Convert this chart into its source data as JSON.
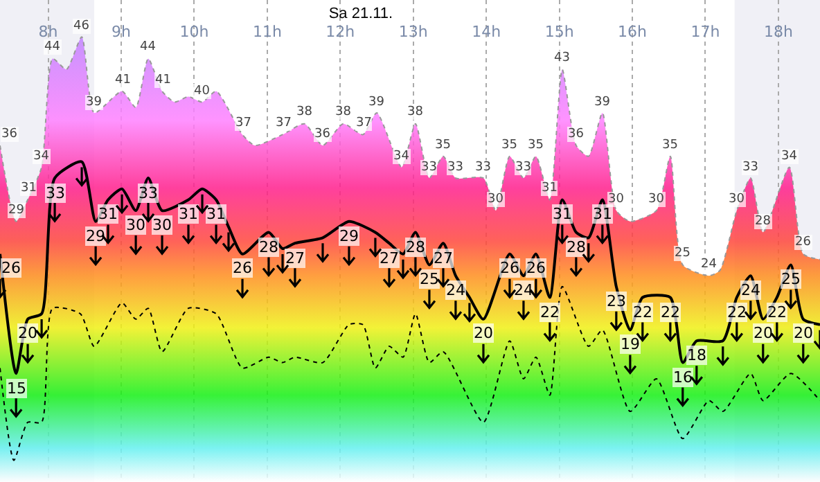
{
  "chart_data": {
    "type": "area",
    "title": "Sa 21.11.",
    "xlim": [
      7.34,
      18.57
    ],
    "xticks": [
      {
        "value": 8,
        "label": "8h"
      },
      {
        "value": 9,
        "label": "9h"
      },
      {
        "value": 10,
        "label": "10h"
      },
      {
        "value": 11,
        "label": "11h"
      },
      {
        "value": 12,
        "label": "12h"
      },
      {
        "value": 13,
        "label": "13h"
      },
      {
        "value": 14,
        "label": "14h"
      },
      {
        "value": 15,
        "label": "15h"
      },
      {
        "value": 16,
        "label": "16h"
      },
      {
        "value": 17,
        "label": "17h"
      },
      {
        "value": 18,
        "label": "18h"
      }
    ],
    "ylim": [
      5,
      49.4
    ],
    "tick_labels": "x",
    "grid": "x",
    "bands": [
      {
        "axis": "x",
        "from": 7.34,
        "to": 8.63,
        "color": "#f0f0f6"
      },
      {
        "axis": "x",
        "from": 17.4,
        "to": 18.57,
        "color": "#f0f0f6"
      }
    ],
    "series": [
      {
        "color": "#ff80ff",
        "line_style": "dotted",
        "x": [
          7.34,
          7.56,
          7.72,
          7.91,
          8.06,
          8.25,
          8.46,
          8.63,
          9.01,
          9.2,
          9.37,
          9.56,
          9.73,
          9.92,
          10.11,
          10.3,
          10.66,
          10.83,
          11.21,
          11.51,
          11.76,
          12.04,
          12.31,
          12.5,
          12.84,
          13.03,
          13.22,
          13.41,
          13.58,
          13.96,
          14.13,
          14.32,
          14.51,
          14.68,
          14.87,
          15.04,
          15.23,
          15.4,
          15.59,
          15.78,
          15.97,
          16.33,
          16.52,
          16.69,
          17.05,
          17.2,
          17.43,
          17.62,
          17.79,
          18.15,
          18.34,
          18.57
        ],
        "values": [
          36,
          29,
          31,
          34,
          44,
          43,
          46,
          39,
          41,
          39.5,
          44,
          41,
          40,
          40.5,
          40,
          41,
          37,
          36,
          37,
          38,
          36,
          38,
          37,
          39,
          34,
          38,
          33,
          35,
          33,
          33,
          30,
          35,
          33,
          35,
          31,
          43,
          36,
          35,
          39,
          30,
          29,
          30,
          35,
          25,
          24,
          24.5,
          30,
          33,
          28,
          34,
          26,
          25.5
        ],
        "value_labels": [
          "36",
          "29",
          "31",
          "34",
          "44",
          null,
          "46",
          "39",
          "41",
          null,
          "44",
          "41",
          null,
          null,
          "40",
          null,
          "37",
          null,
          "37",
          "38",
          "36",
          "38",
          "37",
          "39",
          "34",
          "38",
          "33",
          "35",
          "33",
          "33",
          "30",
          "35",
          "33",
          "35",
          "31",
          "43",
          "36",
          null,
          "39",
          "30",
          null,
          "30",
          "35",
          "25",
          "24",
          null,
          "30",
          "33",
          "28",
          "34",
          "26",
          null
        ]
      },
      {
        "type": "line",
        "color": "#000000",
        "line_style": "solid",
        "x": [
          7.34,
          7.56,
          7.72,
          7.91,
          8.09,
          8.46,
          8.65,
          8.82,
          9.01,
          9.2,
          9.37,
          9.56,
          9.92,
          10.11,
          10.3,
          10.47,
          10.66,
          11.02,
          11.21,
          11.38,
          11.76,
          12.12,
          12.48,
          12.67,
          12.86,
          13.03,
          13.22,
          13.41,
          13.58,
          13.77,
          13.96,
          14.32,
          14.51,
          14.68,
          14.87,
          15.04,
          15.23,
          15.4,
          15.59,
          15.78,
          15.97,
          16.14,
          16.52,
          16.69,
          16.88,
          17.24,
          17.43,
          17.62,
          17.79,
          17.98,
          18.17,
          18.34,
          18.57
        ],
        "values": [
          26,
          15,
          20,
          20.5,
          33,
          34.5,
          29,
          31,
          32,
          30,
          33,
          30,
          31,
          32,
          31,
          28.5,
          26,
          28,
          26.5,
          27,
          27.5,
          29,
          28,
          27,
          26,
          28,
          25,
          27,
          24,
          22,
          20,
          26,
          24,
          26,
          22,
          31,
          28,
          27.5,
          31,
          23,
          19,
          22,
          22,
          16,
          18,
          18,
          22,
          24,
          20,
          22,
          25,
          20,
          19.5
        ],
        "value_labels": [
          "26",
          "15",
          "20",
          null,
          "33",
          null,
          "29",
          "31",
          null,
          "30",
          "33",
          "30",
          "31",
          null,
          "31",
          null,
          "26",
          "28",
          null,
          "27",
          null,
          "29",
          null,
          "27",
          null,
          "28",
          "25",
          "27",
          "24",
          null,
          "20",
          "26",
          "24",
          "26",
          "22",
          "31",
          "28",
          null,
          "31",
          "23",
          "19",
          "22",
          "22",
          "16",
          "18",
          null,
          "22",
          "24",
          "20",
          "22",
          "25",
          "20",
          null
        ]
      },
      {
        "type": "line",
        "color": "#000000",
        "line_style": "dotted",
        "x": [
          7.34,
          7.53,
          7.72,
          7.91,
          8.06,
          8.44,
          8.63,
          9.01,
          9.2,
          9.37,
          9.56,
          9.92,
          10.3,
          10.66,
          11.02,
          11.21,
          11.38,
          11.76,
          12.12,
          12.31,
          12.48,
          12.67,
          12.86,
          13.03,
          13.22,
          13.41,
          13.96,
          14.32,
          14.51,
          14.68,
          14.87,
          15.04,
          15.4,
          15.59,
          15.97,
          16.33,
          16.69,
          17.05,
          17.24,
          17.62,
          17.79,
          18.17,
          18.57
        ],
        "values": [
          15.5,
          7,
          10.5,
          10.5,
          21,
          20.5,
          17.5,
          21.5,
          20,
          21,
          17,
          21,
          20.5,
          15.5,
          16.5,
          16,
          16.5,
          16,
          19.5,
          19.5,
          15.5,
          17.5,
          16.5,
          20.5,
          16,
          17,
          10.5,
          18,
          14.5,
          16.5,
          13,
          23,
          17.5,
          19,
          11.5,
          14.5,
          9,
          12.5,
          11.5,
          15,
          12.5,
          15,
          12.5
        ]
      }
    ]
  }
}
